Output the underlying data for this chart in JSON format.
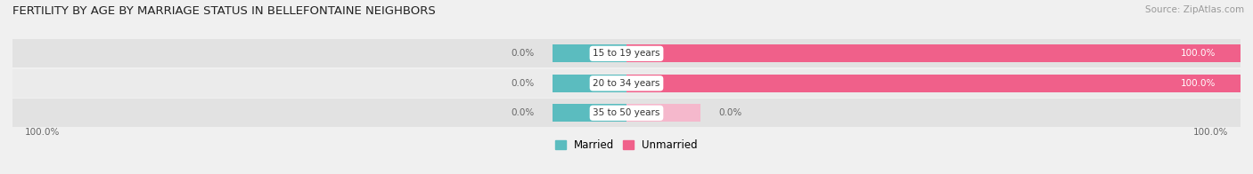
{
  "title": "FERTILITY BY AGE BY MARRIAGE STATUS IN BELLEFONTAINE NEIGHBORS",
  "source": "Source: ZipAtlas.com",
  "categories": [
    "15 to 19 years",
    "20 to 34 years",
    "35 to 50 years"
  ],
  "married_pct": [
    0.0,
    0.0,
    0.0
  ],
  "unmarried_pct": [
    100.0,
    100.0,
    0.0
  ],
  "married_color": "#5bbcbf",
  "unmarried_color_large": "#f0608a",
  "unmarried_color_small": "#f5b8cc",
  "background_color": "#f0f0f0",
  "bar_bg_color": "#e2e2e2",
  "bar_bg_color2": "#ebebeb",
  "title_fontsize": 9.5,
  "source_fontsize": 7.5,
  "label_fontsize": 7.5,
  "legend_fontsize": 8.5,
  "bottom_left_label": "100.0%",
  "bottom_right_label": "100.0%"
}
